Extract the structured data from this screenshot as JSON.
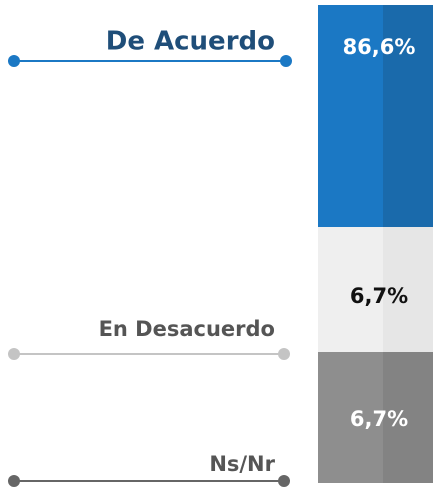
{
  "items": [
    {
      "label": "De Acuerdo",
      "value": "86,6%"
    },
    {
      "label": "En Desacuerdo",
      "value": "6,7%"
    },
    {
      "label": "Ns/Nr",
      "value": "6,7%"
    }
  ]
}
